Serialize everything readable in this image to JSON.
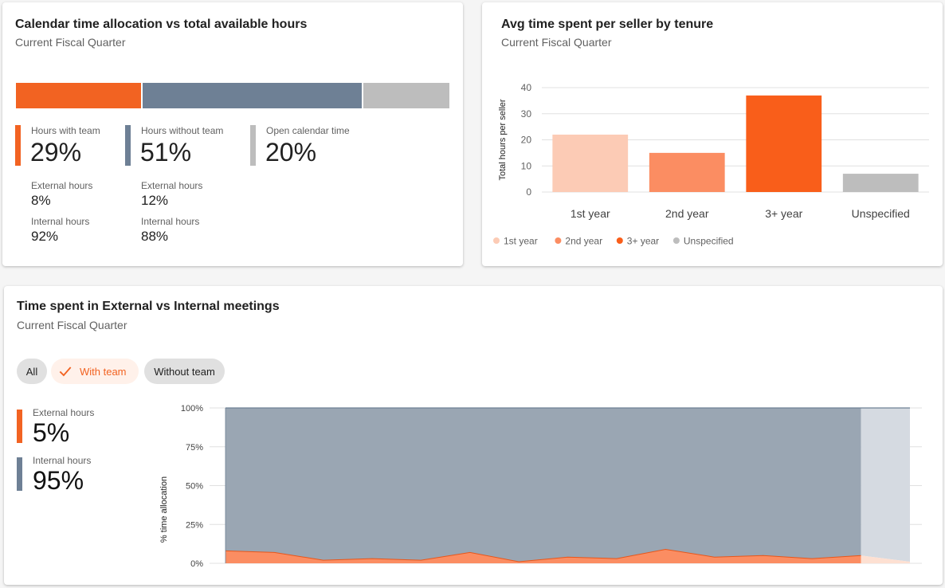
{
  "allocation_card": {
    "title": "Calendar time allocation vs total available hours",
    "subtitle": "Current Fiscal Quarter",
    "segments": [
      {
        "name": "Hours with team",
        "value": 29,
        "display": "29%",
        "color": "#f26322",
        "external_label": "External hours",
        "external_value": "8%",
        "internal_label": "Internal hours",
        "internal_value": "92%"
      },
      {
        "name": "Hours without team",
        "value": 51,
        "display": "51%",
        "color": "#6e8095",
        "external_label": "External hours",
        "external_value": "12%",
        "internal_label": "Internal hours",
        "internal_value": "88%"
      },
      {
        "name": "Open calendar time",
        "value": 20,
        "display": "20%",
        "color": "#bdbdbd"
      }
    ]
  },
  "tenure_card": {
    "title": "Avg time spent per seller by tenure",
    "subtitle": "Current Fiscal Quarter"
  },
  "meetings_card": {
    "title": "Time spent in External vs Internal meetings",
    "subtitle": "Current Fiscal Quarter",
    "chips": {
      "all": "All",
      "with_team": "With team",
      "without_team": "Without team"
    },
    "selected_chip": "with_team",
    "kpis": [
      {
        "label": "External hours",
        "value": "5%",
        "color": "#f26322"
      },
      {
        "label": "Internal hours",
        "value": "95%",
        "color": "#6e8095"
      }
    ]
  },
  "chart_data": [
    {
      "type": "bar",
      "title": "Avg time spent per seller by tenure",
      "ylabel": "Total hours per seller",
      "xlabel": "",
      "categories": [
        "1st year",
        "2nd year",
        "3+ year",
        "Unspecified"
      ],
      "values": [
        22,
        15,
        37,
        7
      ],
      "colors": [
        "#fccbb5",
        "#fb8d62",
        "#f95e1a",
        "#bdbdbd"
      ],
      "ylim": [
        0,
        40
      ],
      "yticks": [
        0,
        10,
        20,
        30,
        40
      ],
      "grid": true,
      "legend": "bottom-left"
    },
    {
      "type": "area",
      "title": "Time spent in External vs Internal meetings",
      "ylabel": "% time allocation",
      "ylim": [
        0,
        100
      ],
      "yticks": [
        "0%",
        "25%",
        "50%",
        "75%",
        "100%"
      ],
      "grid": true,
      "series": [
        {
          "name": "External hours",
          "color": "#fb8d62",
          "values": [
            8,
            7,
            2,
            3,
            2,
            7,
            1,
            4,
            3,
            9,
            4,
            5,
            3,
            5,
            1
          ]
        },
        {
          "name": "Internal hours",
          "color": "#9aa6b3",
          "stacked_to": 100
        }
      ],
      "partial_last_period": true
    }
  ]
}
